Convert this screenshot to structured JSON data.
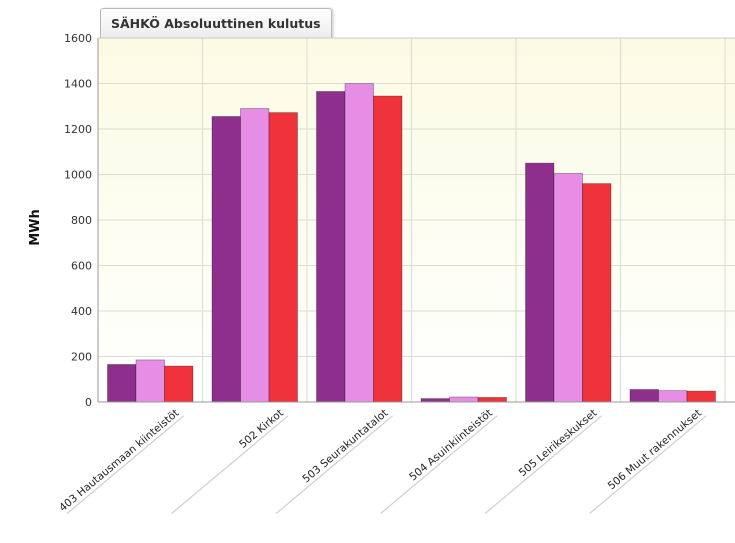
{
  "chart_data": {
    "type": "bar",
    "title": "SÄHKÖ Absoluuttinen kulutus",
    "xlabel": "",
    "ylabel": "MWh",
    "ylim": [
      0,
      1600
    ],
    "yticks": [
      0,
      200,
      400,
      600,
      800,
      1000,
      1200,
      1400,
      1600
    ],
    "grid": true,
    "categories": [
      "403 Hautausmaan kiinteistöt",
      "502 Kirkot",
      "503 Seurakuntatalot",
      "504 Asuinkiinteistöt",
      "505 Leirikeskukset",
      "506 Muut rakennukset"
    ],
    "series": [
      {
        "color": "#8e2f8e",
        "values": [
          165,
          1255,
          1365,
          15,
          1050,
          55
        ]
      },
      {
        "color": "#e68ee6",
        "values": [
          185,
          1290,
          1400,
          22,
          1005,
          50
        ]
      },
      {
        "color": "#f0333a",
        "values": [
          158,
          1272,
          1345,
          20,
          960,
          48
        ]
      }
    ]
  }
}
